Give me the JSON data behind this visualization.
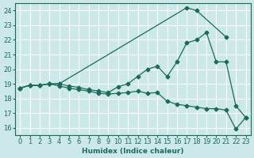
{
  "background_color": "#cce8e8",
  "grid_color": "#ffffff",
  "line_color": "#1a6b5a",
  "xlabel": "Humidex (Indice chaleur)",
  "xlim": [
    -0.5,
    23.5
  ],
  "ylim": [
    15.5,
    24.5
  ],
  "yticks": [
    16,
    17,
    18,
    19,
    20,
    21,
    22,
    23,
    24
  ],
  "xticks": [
    0,
    1,
    2,
    3,
    4,
    5,
    6,
    7,
    8,
    9,
    10,
    11,
    12,
    13,
    14,
    15,
    16,
    17,
    18,
    19,
    20,
    21,
    22,
    23
  ],
  "line1_x": [
    0,
    1,
    2,
    3,
    4,
    17,
    18,
    21
  ],
  "line1_y": [
    18.7,
    18.9,
    18.9,
    19.0,
    19.0,
    24.2,
    24.0,
    22.2
  ],
  "line2_x": [
    0,
    1,
    2,
    3,
    4,
    5,
    6,
    7,
    8,
    9,
    10,
    11,
    12,
    13,
    14,
    15,
    16,
    17,
    18,
    19,
    20,
    21,
    22,
    23
  ],
  "line2_y": [
    18.7,
    18.9,
    18.9,
    19.0,
    19.0,
    18.85,
    18.75,
    18.6,
    18.5,
    18.4,
    18.8,
    19.0,
    19.5,
    20.0,
    20.2,
    19.5,
    20.5,
    21.8,
    22.0,
    22.5,
    20.5,
    20.5,
    17.5,
    16.7
  ],
  "line3_x": [
    0,
    1,
    2,
    3,
    4,
    5,
    6,
    7,
    8,
    9,
    10,
    11,
    12,
    13,
    14,
    15,
    16,
    17,
    18,
    19,
    20,
    21,
    22,
    23
  ],
  "line3_y": [
    18.7,
    18.9,
    18.9,
    19.0,
    18.85,
    18.7,
    18.6,
    18.5,
    18.35,
    18.3,
    18.35,
    18.4,
    18.5,
    18.35,
    18.4,
    17.8,
    17.6,
    17.5,
    17.4,
    17.3,
    17.3,
    17.2,
    15.9,
    16.7
  ]
}
